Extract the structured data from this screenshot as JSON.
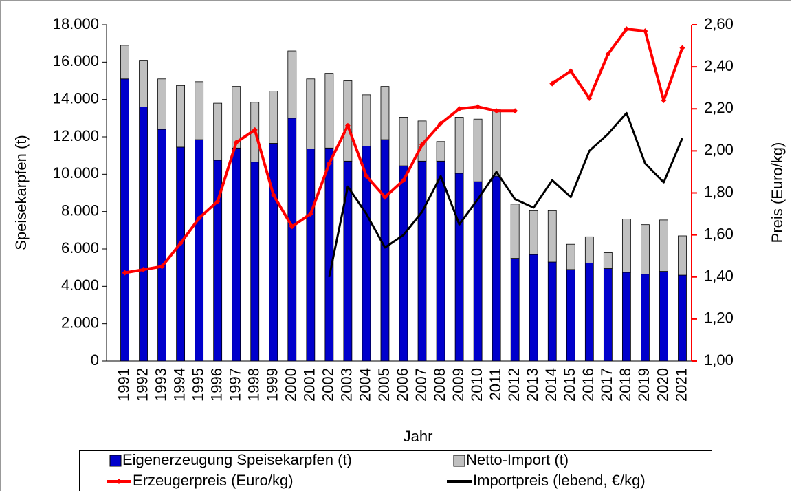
{
  "chart_data": {
    "type": "bar",
    "stacked": true,
    "x_label": "Jahr",
    "y_label": "Speisekarpfen (t)",
    "y2_label": "Preis (Euro/kg)",
    "y2_color": "#ff0000",
    "categories": [
      "1991",
      "1992",
      "1993",
      "1994",
      "1995",
      "1996",
      "1997",
      "1998",
      "1999",
      "2000",
      "2001",
      "2002",
      "2003",
      "2004",
      "2005",
      "2006",
      "2007",
      "2008",
      "2009",
      "2010",
      "2011",
      "2012",
      "2013",
      "2014",
      "2015",
      "2016",
      "2017",
      "2018",
      "2019",
      "2020",
      "2021"
    ],
    "series": [
      {
        "name": "Eigenerzeugung Speisekarpfen (t)",
        "type": "bar",
        "color": "#0000cc",
        "values": [
          15100,
          13600,
          12400,
          11450,
          11850,
          10750,
          11400,
          10650,
          11650,
          13000,
          11350,
          11400,
          10700,
          11500,
          11850,
          10450,
          10700,
          10700,
          10050,
          9600,
          9900,
          5500,
          5700,
          5300,
          4900,
          5250,
          4950,
          4750,
          4650,
          4800,
          4600
        ]
      },
      {
        "name": "Netto-Import (t)",
        "type": "bar",
        "color": "#c0c0c0",
        "values": [
          1800,
          2500,
          2700,
          3300,
          3100,
          3050,
          3300,
          3200,
          2800,
          3600,
          3750,
          4000,
          4300,
          2750,
          2850,
          2600,
          2150,
          1050,
          3000,
          3350,
          3550,
          2900,
          2350,
          2750,
          1350,
          1400,
          850,
          2850,
          2650,
          2750,
          2100
        ]
      },
      {
        "name": "Erzeugerpreis (Euro/kg)",
        "type": "line",
        "marker": true,
        "axis": "y2",
        "color": "#ff0000",
        "values": [
          1.42,
          1.435,
          1.45,
          1.56,
          1.68,
          1.76,
          2.04,
          2.1,
          1.79,
          1.64,
          1.7,
          1.94,
          2.12,
          1.88,
          1.78,
          1.86,
          2.03,
          2.13,
          2.2,
          2.21,
          2.19,
          2.19,
          null,
          2.32,
          2.38,
          2.25,
          2.46,
          2.58,
          2.57,
          2.24,
          2.49
        ]
      },
      {
        "name": "Importpreis (lebend, €/kg)",
        "type": "line",
        "axis": "y2",
        "color": "#000000",
        "values": [
          null,
          null,
          null,
          null,
          null,
          null,
          null,
          null,
          null,
          null,
          null,
          1.4,
          1.83,
          1.7,
          1.54,
          1.6,
          1.71,
          1.88,
          1.65,
          1.77,
          1.9,
          1.77,
          1.73,
          1.86,
          1.78,
          2.0,
          2.08,
          2.18,
          1.94,
          1.85,
          2.06
        ]
      }
    ],
    "ylim": [
      0,
      18000
    ],
    "yticks": [
      0,
      {
        "value": 2000,
        "label": "2.000"
      },
      {
        "value": 4000,
        "label": "4.000"
      },
      {
        "value": 6000,
        "label": "6.000"
      },
      {
        "value": 8000,
        "label": "8.000"
      },
      {
        "value": 10000,
        "label": "10.000"
      },
      {
        "value": 12000,
        "label": "12.000"
      },
      {
        "value": 14000,
        "label": "14.000"
      },
      {
        "value": 16000,
        "label": "16.000"
      },
      {
        "value": 18000,
        "label": "18.000"
      }
    ],
    "y2lim": [
      1.0,
      2.6
    ],
    "y2ticks": [
      {
        "value": 1.0,
        "label": "1,00"
      },
      {
        "value": 1.2,
        "label": "1,20"
      },
      {
        "value": 1.4,
        "label": "1,40"
      },
      {
        "value": 1.6,
        "label": "1,60"
      },
      {
        "value": 1.8,
        "label": "1,80"
      },
      {
        "value": 2.0,
        "label": "2,00"
      },
      {
        "value": 2.2,
        "label": "2,20"
      },
      {
        "value": 2.4,
        "label": "2,40"
      },
      {
        "value": 2.6,
        "label": "2,60"
      }
    ],
    "grid": false,
    "legend": "bottom"
  }
}
